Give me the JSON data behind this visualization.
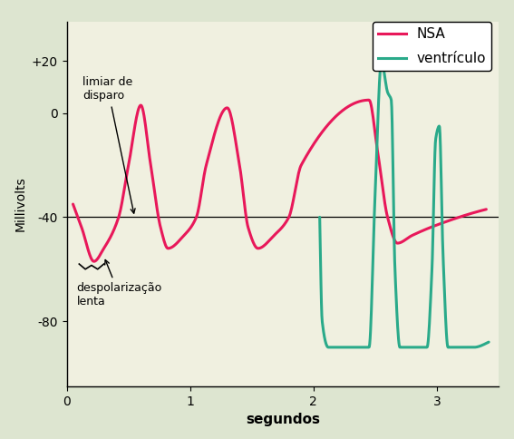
{
  "xlabel": "segundos",
  "ylabel": "Millivolts",
  "xlim": [
    0,
    3.5
  ],
  "ylim": [
    -105,
    35
  ],
  "yticks": [
    -80,
    -40,
    0,
    20
  ],
  "ytick_labels": [
    "-80",
    "-40",
    "0",
    "+20"
  ],
  "xticks": [
    0,
    1,
    2,
    3
  ],
  "xtick_labels": [
    "0",
    "1",
    "2",
    "3"
  ],
  "hline_y": -40,
  "nsa_color": "#e8185a",
  "ventricle_color": "#2aaa8a",
  "background_color": "#f0f0e0",
  "outer_background": "#dde5d0",
  "legend_label_nsa": "NSA",
  "legend_label_ventricle": "ventrículo",
  "annotation1_text": "limiar de\ndisparo",
  "annotation2_text": "despolarização\nlenta"
}
